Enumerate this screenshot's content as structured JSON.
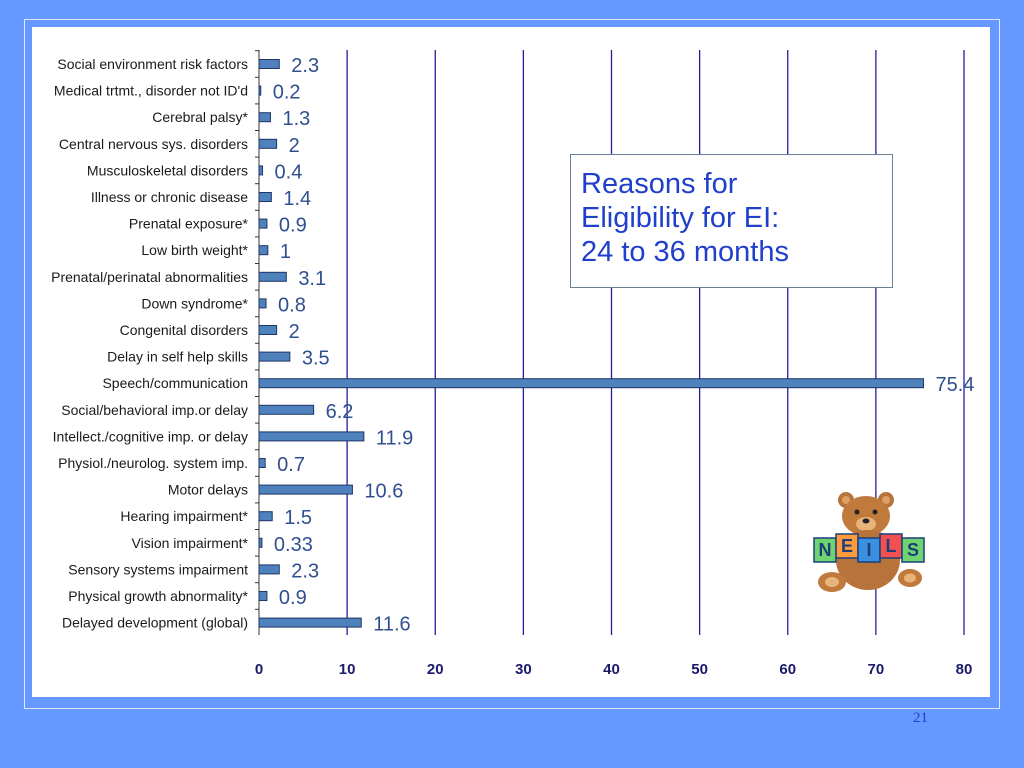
{
  "slide": {
    "page_number": "21"
  },
  "callout": {
    "lines": [
      "Reasons for",
      "Eligibility for EI:",
      "24 to 36 months"
    ]
  },
  "mascot": {
    "icon": "teddy-bear-with-neils-blocks",
    "blocks_text": "NEILS"
  },
  "colors": {
    "background": "#6699ff",
    "bar": "#4f81bd",
    "label": "#2f4f8f",
    "gridline": "#1f1fa0",
    "callout_text": "#1f3fcc"
  },
  "chart_data": {
    "type": "bar",
    "orientation": "horizontal",
    "categories": [
      "Social environment risk factors",
      "Medical trtmt., disorder not ID'd",
      "Cerebral palsy*",
      "Central nervous sys. disorders",
      "Musculoskeletal disorders",
      "Illness or chronic disease",
      "Prenatal exposure*",
      "Low birth weight*",
      "Prenatal/perinatal abnormalities",
      "Down syndrome*",
      "Congenital disorders",
      "Delay in self help skills",
      "Speech/communication",
      "Social/behavioral imp.or delay",
      "Intellect./cognitive imp. or delay",
      "Physiol./neurolog. system imp.",
      "Motor delays",
      "Hearing impairment*",
      "Vision impairment*",
      "Sensory systems impairment",
      "Physical growth abnormality*",
      "Delayed development (global)"
    ],
    "values": [
      2.3,
      0.2,
      1.3,
      2,
      0.4,
      1.4,
      0.9,
      1,
      3.1,
      0.8,
      2,
      3.5,
      75.4,
      6.2,
      11.9,
      0.7,
      10.6,
      1.5,
      0.33,
      2.3,
      0.9,
      11.6
    ],
    "value_labels": [
      "2.3",
      "0.2",
      "1.3",
      "2",
      "0.4",
      "1.4",
      "0.9",
      "1",
      "3.1",
      "0.8",
      "2",
      "3.5",
      "75.4",
      "6.2",
      "11.9",
      "0.7",
      "10.6",
      "1.5",
      "0.33",
      "2.3",
      "0.9",
      "11.6"
    ],
    "xlim": [
      0,
      80
    ],
    "xticks": [
      0,
      10,
      20,
      30,
      40,
      50,
      60,
      70,
      80
    ],
    "xtick_labels": [
      "0",
      "10",
      "20",
      "30",
      "40",
      "50",
      "60",
      "70",
      "80"
    ],
    "grid": "vertical",
    "title": "",
    "xlabel": "",
    "ylabel": ""
  }
}
